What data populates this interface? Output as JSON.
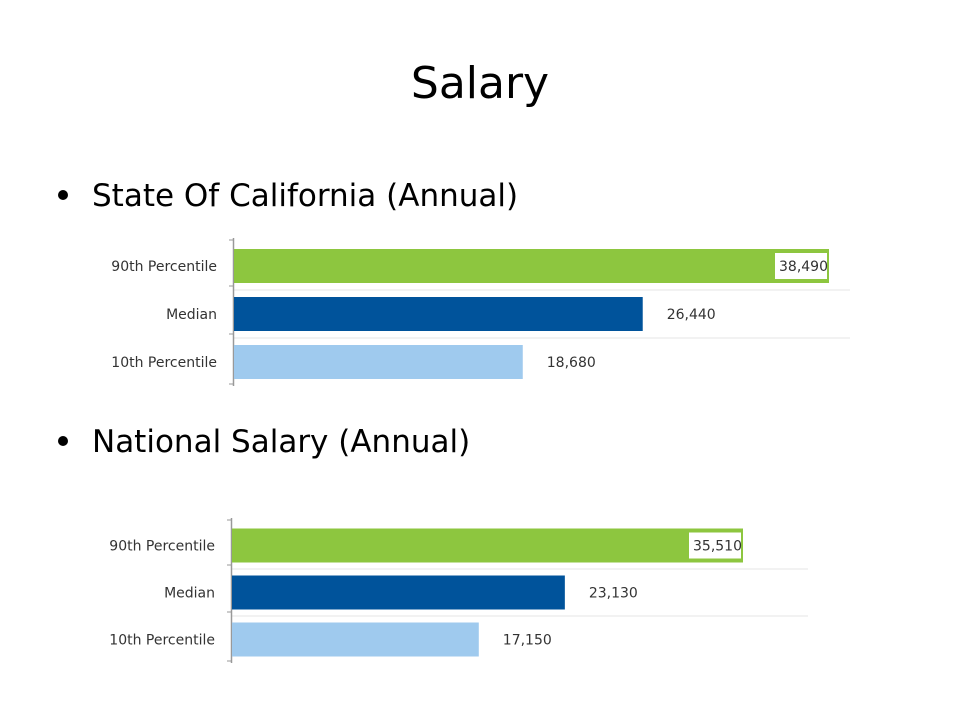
{
  "slide": {
    "title": "Salary",
    "bullets": [
      "State Of California (Annual)",
      "National Salary (Annual)"
    ]
  },
  "colors": {
    "p90": "#8dc63f",
    "median": "#00539b",
    "p10": "#9fcaee"
  },
  "chart_data": [
    {
      "type": "bar",
      "orientation": "horizontal",
      "title": "",
      "categories": [
        "90th Percentile",
        "Median",
        "10th Percentile"
      ],
      "values": [
        38490,
        26440,
        18680
      ],
      "value_labels": [
        "38,490",
        "26,440",
        "18,680"
      ],
      "grid": false
    },
    {
      "type": "bar",
      "orientation": "horizontal",
      "title": "",
      "categories": [
        "90th Percentile",
        "Median",
        "10th Percentile"
      ],
      "values": [
        35510,
        23130,
        17150
      ],
      "value_labels": [
        "35,510",
        "23,130",
        "17,150"
      ],
      "grid": false
    }
  ]
}
